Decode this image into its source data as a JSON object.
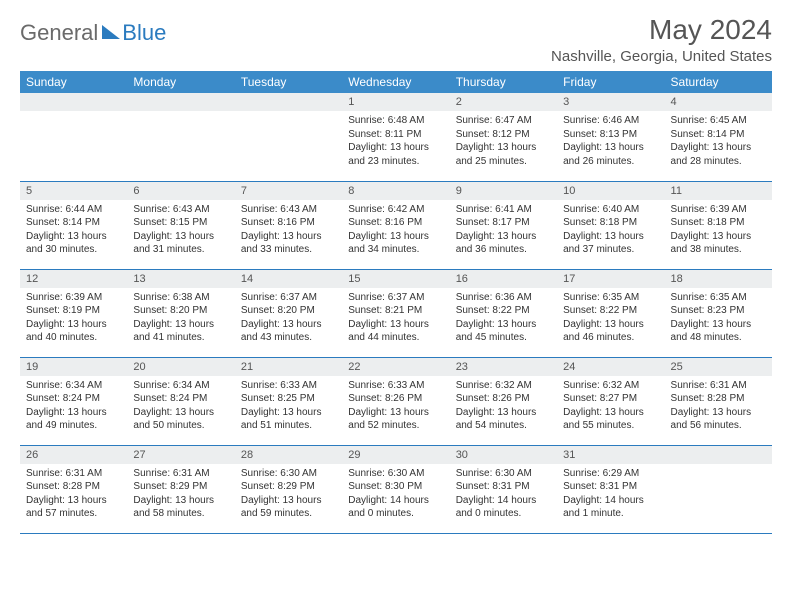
{
  "logo": {
    "general": "General",
    "blue": "Blue"
  },
  "title": "May 2024",
  "location": "Nashville, Georgia, United States",
  "header_bg": "#3b8bc9",
  "header_text": "#ffffff",
  "border_color": "#2b7bbf",
  "daynum_bg": "#eceeef",
  "weekdays": [
    "Sunday",
    "Monday",
    "Tuesday",
    "Wednesday",
    "Thursday",
    "Friday",
    "Saturday"
  ],
  "weeks": [
    [
      {
        "n": "",
        "sr": "",
        "ss": "",
        "dl": ""
      },
      {
        "n": "",
        "sr": "",
        "ss": "",
        "dl": ""
      },
      {
        "n": "",
        "sr": "",
        "ss": "",
        "dl": ""
      },
      {
        "n": "1",
        "sr": "Sunrise: 6:48 AM",
        "ss": "Sunset: 8:11 PM",
        "dl": "Daylight: 13 hours and 23 minutes."
      },
      {
        "n": "2",
        "sr": "Sunrise: 6:47 AM",
        "ss": "Sunset: 8:12 PM",
        "dl": "Daylight: 13 hours and 25 minutes."
      },
      {
        "n": "3",
        "sr": "Sunrise: 6:46 AM",
        "ss": "Sunset: 8:13 PM",
        "dl": "Daylight: 13 hours and 26 minutes."
      },
      {
        "n": "4",
        "sr": "Sunrise: 6:45 AM",
        "ss": "Sunset: 8:14 PM",
        "dl": "Daylight: 13 hours and 28 minutes."
      }
    ],
    [
      {
        "n": "5",
        "sr": "Sunrise: 6:44 AM",
        "ss": "Sunset: 8:14 PM",
        "dl": "Daylight: 13 hours and 30 minutes."
      },
      {
        "n": "6",
        "sr": "Sunrise: 6:43 AM",
        "ss": "Sunset: 8:15 PM",
        "dl": "Daylight: 13 hours and 31 minutes."
      },
      {
        "n": "7",
        "sr": "Sunrise: 6:43 AM",
        "ss": "Sunset: 8:16 PM",
        "dl": "Daylight: 13 hours and 33 minutes."
      },
      {
        "n": "8",
        "sr": "Sunrise: 6:42 AM",
        "ss": "Sunset: 8:16 PM",
        "dl": "Daylight: 13 hours and 34 minutes."
      },
      {
        "n": "9",
        "sr": "Sunrise: 6:41 AM",
        "ss": "Sunset: 8:17 PM",
        "dl": "Daylight: 13 hours and 36 minutes."
      },
      {
        "n": "10",
        "sr": "Sunrise: 6:40 AM",
        "ss": "Sunset: 8:18 PM",
        "dl": "Daylight: 13 hours and 37 minutes."
      },
      {
        "n": "11",
        "sr": "Sunrise: 6:39 AM",
        "ss": "Sunset: 8:18 PM",
        "dl": "Daylight: 13 hours and 38 minutes."
      }
    ],
    [
      {
        "n": "12",
        "sr": "Sunrise: 6:39 AM",
        "ss": "Sunset: 8:19 PM",
        "dl": "Daylight: 13 hours and 40 minutes."
      },
      {
        "n": "13",
        "sr": "Sunrise: 6:38 AM",
        "ss": "Sunset: 8:20 PM",
        "dl": "Daylight: 13 hours and 41 minutes."
      },
      {
        "n": "14",
        "sr": "Sunrise: 6:37 AM",
        "ss": "Sunset: 8:20 PM",
        "dl": "Daylight: 13 hours and 43 minutes."
      },
      {
        "n": "15",
        "sr": "Sunrise: 6:37 AM",
        "ss": "Sunset: 8:21 PM",
        "dl": "Daylight: 13 hours and 44 minutes."
      },
      {
        "n": "16",
        "sr": "Sunrise: 6:36 AM",
        "ss": "Sunset: 8:22 PM",
        "dl": "Daylight: 13 hours and 45 minutes."
      },
      {
        "n": "17",
        "sr": "Sunrise: 6:35 AM",
        "ss": "Sunset: 8:22 PM",
        "dl": "Daylight: 13 hours and 46 minutes."
      },
      {
        "n": "18",
        "sr": "Sunrise: 6:35 AM",
        "ss": "Sunset: 8:23 PM",
        "dl": "Daylight: 13 hours and 48 minutes."
      }
    ],
    [
      {
        "n": "19",
        "sr": "Sunrise: 6:34 AM",
        "ss": "Sunset: 8:24 PM",
        "dl": "Daylight: 13 hours and 49 minutes."
      },
      {
        "n": "20",
        "sr": "Sunrise: 6:34 AM",
        "ss": "Sunset: 8:24 PM",
        "dl": "Daylight: 13 hours and 50 minutes."
      },
      {
        "n": "21",
        "sr": "Sunrise: 6:33 AM",
        "ss": "Sunset: 8:25 PM",
        "dl": "Daylight: 13 hours and 51 minutes."
      },
      {
        "n": "22",
        "sr": "Sunrise: 6:33 AM",
        "ss": "Sunset: 8:26 PM",
        "dl": "Daylight: 13 hours and 52 minutes."
      },
      {
        "n": "23",
        "sr": "Sunrise: 6:32 AM",
        "ss": "Sunset: 8:26 PM",
        "dl": "Daylight: 13 hours and 54 minutes."
      },
      {
        "n": "24",
        "sr": "Sunrise: 6:32 AM",
        "ss": "Sunset: 8:27 PM",
        "dl": "Daylight: 13 hours and 55 minutes."
      },
      {
        "n": "25",
        "sr": "Sunrise: 6:31 AM",
        "ss": "Sunset: 8:28 PM",
        "dl": "Daylight: 13 hours and 56 minutes."
      }
    ],
    [
      {
        "n": "26",
        "sr": "Sunrise: 6:31 AM",
        "ss": "Sunset: 8:28 PM",
        "dl": "Daylight: 13 hours and 57 minutes."
      },
      {
        "n": "27",
        "sr": "Sunrise: 6:31 AM",
        "ss": "Sunset: 8:29 PM",
        "dl": "Daylight: 13 hours and 58 minutes."
      },
      {
        "n": "28",
        "sr": "Sunrise: 6:30 AM",
        "ss": "Sunset: 8:29 PM",
        "dl": "Daylight: 13 hours and 59 minutes."
      },
      {
        "n": "29",
        "sr": "Sunrise: 6:30 AM",
        "ss": "Sunset: 8:30 PM",
        "dl": "Daylight: 14 hours and 0 minutes."
      },
      {
        "n": "30",
        "sr": "Sunrise: 6:30 AM",
        "ss": "Sunset: 8:31 PM",
        "dl": "Daylight: 14 hours and 0 minutes."
      },
      {
        "n": "31",
        "sr": "Sunrise: 6:29 AM",
        "ss": "Sunset: 8:31 PM",
        "dl": "Daylight: 14 hours and 1 minute."
      },
      {
        "n": "",
        "sr": "",
        "ss": "",
        "dl": ""
      }
    ]
  ]
}
